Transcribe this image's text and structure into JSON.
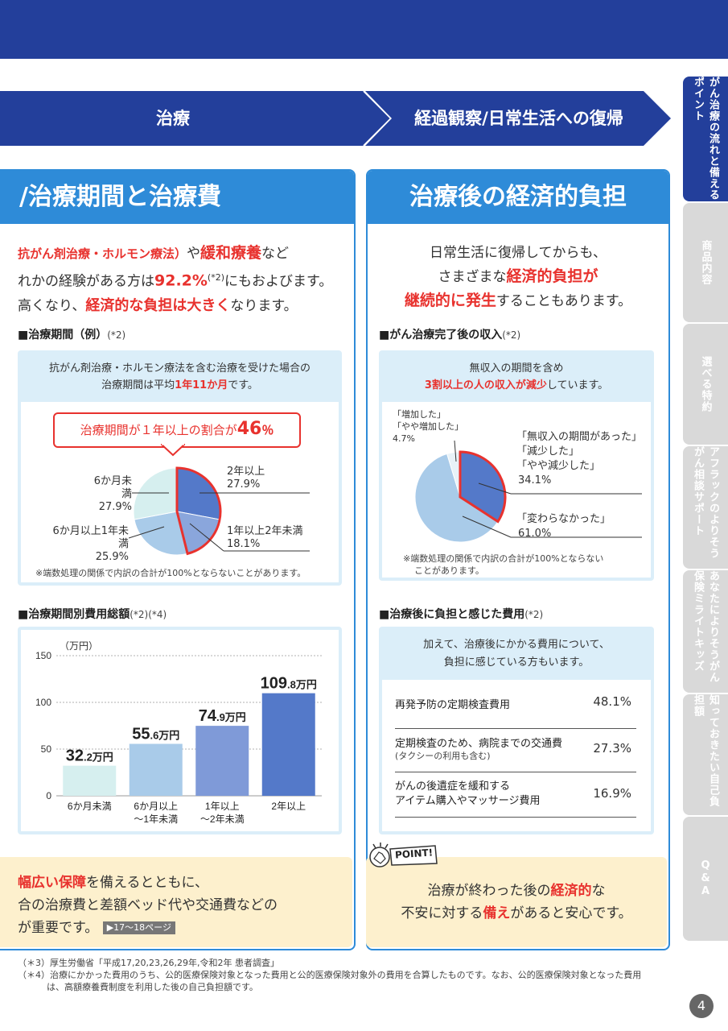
{
  "stages": {
    "treatment": "治療",
    "recovery": "経過観察/日常生活への復帰"
  },
  "sidebar": [
    {
      "label": "がん治療の流れと備えるポイント",
      "active": true
    },
    {
      "label": "商品内容"
    },
    {
      "label": "選べる特約"
    },
    {
      "label": "アフラックのよりそうがん相談サポート"
    },
    {
      "label": "あなたによりそうがん保険ミライトキッズ"
    },
    {
      "label": "知っておきたい自己負担額"
    },
    {
      "label": "Q&A"
    }
  ],
  "left": {
    "title": "/治療期間と治療費",
    "lead": {
      "l1a": "抗がん剤治療・ホルモン療法）",
      "l1b": "や",
      "l1c": "緩和療養",
      "l1d": "など",
      "l2a": "れかの経験がある方は",
      "l2b": "92.2%",
      "l2c": "(*2)",
      "l2d": "にもおよびます。",
      "l3a": "高くなり、",
      "l3b": "経済的な負担は大きく",
      "l3c": "なります。"
    },
    "period_head": "■治療期間（例）",
    "period_note": "(*2)",
    "period_card": {
      "l1": "抗がん剤治療・ホルモン療法を含む治療を受けた場合の",
      "l2a": "治療期間は平均",
      "l2b": "1年11か月",
      "l2c": "です。"
    },
    "callout": {
      "a": "治療期間が１年以上の割合が",
      "b": "46",
      "c": "％"
    },
    "pie_labels": {
      "under6_name": "6か月未満",
      "under6_val": "27.9%",
      "six_to_1_name": "6か月以上1年未満",
      "six_to_1_val": "25.9%",
      "over2_name": "2年以上",
      "over2_val": "27.9%",
      "one_to_2_name": "1年以上2年未満",
      "one_to_2_val": "18.1%"
    },
    "pie_note": "※端数処理の関係で内訳の合計が100%とならないことがあります。",
    "cost_head": "■治療期間別費用総額",
    "cost_note": "(*2)(*4)",
    "bar_unit": "（万円）",
    "bar_values": [
      {
        "num": "32",
        "dec": ".2",
        "unit": "万円"
      },
      {
        "num": "55",
        "dec": ".6",
        "unit": "万円"
      },
      {
        "num": "74",
        "dec": ".9",
        "unit": "万円"
      },
      {
        "num": "109",
        "dec": ".8",
        "unit": "万円"
      }
    ],
    "bar_cat": [
      {
        "l1": "6か月未満",
        "l2": ""
      },
      {
        "l1": "6か月以上",
        "l2": "～1年未満"
      },
      {
        "l1": "1年以上",
        "l2": "～2年未満"
      },
      {
        "l1": "2年以上",
        "l2": ""
      }
    ],
    "bottom": {
      "l1a": "幅広い保障",
      "l1b": "を備えるとともに、",
      "l2": "合の治療費と差額ベッド代や交通費などの",
      "l3": "が重要です。",
      "link": "▶17〜18ページ"
    }
  },
  "right": {
    "title": "治療後の経済的負担",
    "lead": {
      "l1": "日常生活に復帰してからも、",
      "l2a": "さまざまな",
      "l2b": "経済的負担が",
      "l3a": "継続的に発生",
      "l3b": "することもあります。"
    },
    "income_head": "■がん治療完了後の収入",
    "income_note": "(*2)",
    "income_card": {
      "l1": "無収入の期間を含め",
      "l2a": "3割以上の人の収入が減少",
      "l2b": "しています。"
    },
    "pie_labels": {
      "inc1": "「増加した」",
      "inc2": "「やや増加した」",
      "inc_val": "4.7%",
      "dec1": "「無収入の期間があった」",
      "dec2": "「減少した」",
      "dec3": "「やや減少した」",
      "dec_val": "34.1%",
      "same": "「変わらなかった」",
      "same_val": "61.0%"
    },
    "pie_note1": "※端数処理の関係で内訳の合計が100%とならない",
    "pie_note2": "ことがあります。",
    "burden_head": "■治療後に負担と感じた費用",
    "burden_note": "(*2)",
    "burden_card": {
      "l1": "加えて、治療後にかかる費用について、",
      "l2": "負担に感じている方もいます。"
    },
    "burden_rows": [
      {
        "l1": "再発予防の定期検査費用",
        "l2": "",
        "pct": "48.1%"
      },
      {
        "l1": "定期検査のため、病院までの交通費",
        "l2": "(タクシーの利用も含む)",
        "pct": "27.3%"
      },
      {
        "l1": "がんの後遺症を緩和する",
        "l2": "アイテム購入やマッサージ費用",
        "pct": "16.9%"
      }
    ],
    "point_label": "POINT!",
    "bottom": {
      "l1a": "治療が終わった後の",
      "l1b": "経済的",
      "l1c": "な",
      "l2a": "不安に対する",
      "l2b": "備え",
      "l2c": "があると安心です。"
    }
  },
  "footnotes": {
    "f3": "（＊3）厚生労働省「平成17,20,23,26,29年,令和2年 患者調査」",
    "f4a": "（＊4）治療にかかった費用のうち、公的医療保険対象となった費用と公的医療保険対象外の費用を合算したものです。なお、公的医療保険対象となった費用",
    "f4b": "は、高額療養費制度を利用した後の自己負担額です。"
  },
  "page_number": "4",
  "chart_data": [
    {
      "type": "pie",
      "categories": [
        "6か月未満",
        "6か月以上1年未満",
        "1年以上2年未満",
        "2年以上"
      ],
      "values": [
        27.9,
        25.9,
        18.1,
        27.9
      ],
      "colors": [
        "#d6efef",
        "#a9cbe9",
        "#8aa6dc",
        "#5479c9"
      ]
    },
    {
      "type": "bar",
      "categories": [
        "6か月未満",
        "6か月以上～1年未満",
        "1年以上～2年未満",
        "2年以上"
      ],
      "values": [
        32.2,
        55.6,
        74.9,
        109.8
      ],
      "ylabel": "（万円）",
      "ylim": [
        0,
        150
      ],
      "yticks": [
        0,
        50,
        100,
        150
      ],
      "colors": [
        "#d6efef",
        "#a9cbe9",
        "#7f9ad8",
        "#5479c9"
      ]
    },
    {
      "type": "pie",
      "categories": [
        "「増加した」「やや増加した」",
        "「無収入の期間があった」「減少した」「やや減少した」",
        "「変わらなかった」"
      ],
      "values": [
        4.7,
        34.1,
        61.0
      ],
      "colors": [
        "#e8f2f8",
        "#5479c9",
        "#a9cbe9"
      ]
    }
  ]
}
